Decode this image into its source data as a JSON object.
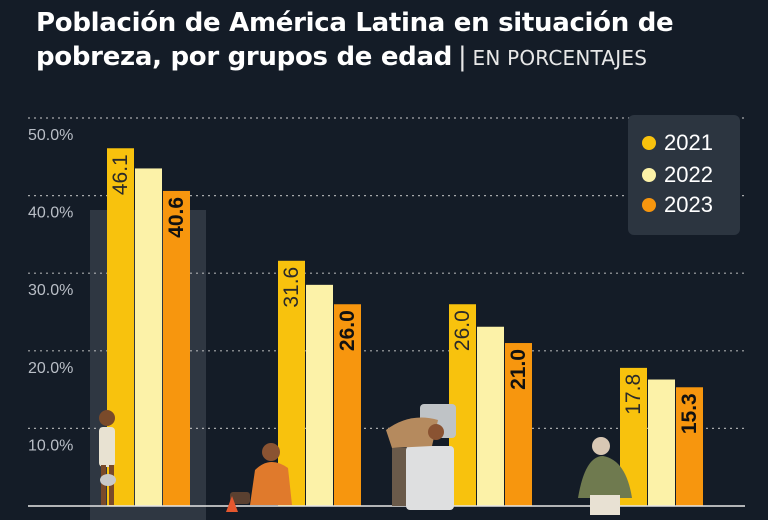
{
  "header": {
    "title": "Población de América Latina en situación de pobreza, por grupos de edad",
    "separator": "|",
    "unit": "EN PORCENTAJES"
  },
  "colors": {
    "background": "#141c27",
    "series_2021": "#f8c20d",
    "series_2022": "#fcf2a8",
    "series_2023": "#f7960e",
    "grid": "#d8d8d8",
    "axis_text": "#b9bec6",
    "highlight_band": "#2f3742",
    "legend_box": "#2c3540"
  },
  "chart_data": {
    "type": "bar",
    "title": "Población de América Latina en situación de pobreza, por grupos de edad",
    "subtitle": "EN PORCENTAJES",
    "categories": [
      "",
      "",
      "",
      ""
    ],
    "series": [
      {
        "name": "2021",
        "values": [
          46.1,
          31.6,
          26.0,
          17.8
        ]
      },
      {
        "name": "2022",
        "values": [
          43.5,
          28.5,
          23.1,
          16.3
        ]
      },
      {
        "name": "2023",
        "values": [
          40.6,
          26.0,
          21.0,
          15.3
        ]
      }
    ],
    "labels": {
      "2021": [
        "46.1",
        "31.6",
        "26.0",
        "17.8"
      ],
      "2023": [
        "40.6",
        "26.0",
        "21.0",
        "15.3"
      ]
    },
    "ytick_labels": [
      "10.0%",
      "20.0%",
      "30.0%",
      "40.0%",
      "50.0%"
    ],
    "yticks": [
      10,
      20,
      30,
      40,
      50
    ],
    "ylim": [
      0,
      50
    ],
    "xlabel": "",
    "ylabel": "",
    "grid": true,
    "legend_position": "top-right"
  },
  "legend": {
    "items": [
      "2021",
      "2022",
      "2023"
    ]
  }
}
